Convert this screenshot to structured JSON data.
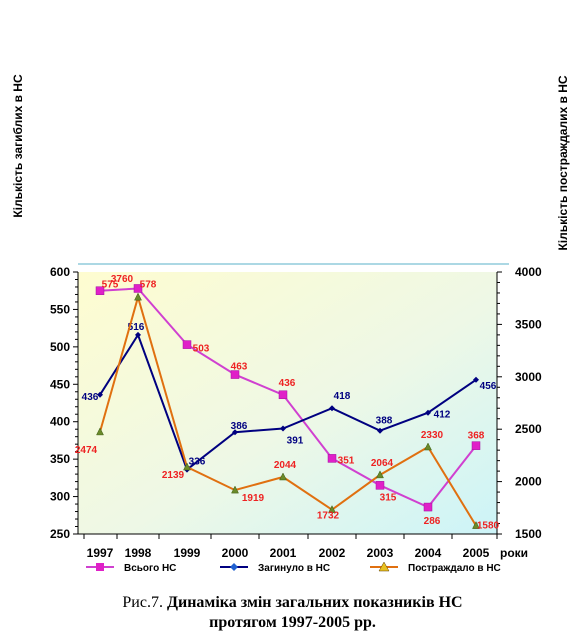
{
  "chart_data": {
    "type": "line",
    "left_axis_label": "Кількість загиблих в НС",
    "right_axis_label": "Кількість постраждалих в НС",
    "x_unit_label": "роки",
    "categories": [
      "1997",
      "1998",
      "1999",
      "2000",
      "2001",
      "2002",
      "2003",
      "2004",
      "2005"
    ],
    "left_ylim": [
      250,
      600
    ],
    "left_ticks": [
      250,
      300,
      350,
      400,
      450,
      500,
      550,
      600
    ],
    "right_ylim": [
      1500,
      4000
    ],
    "right_ticks": [
      1500,
      2000,
      2500,
      3000,
      3500,
      4000
    ],
    "grid": false,
    "legend_position": "bottom",
    "series": [
      {
        "name": "Всього НС",
        "axis": "left",
        "color": "#e020c8",
        "line_color": "#d040d0",
        "marker": "square",
        "values": [
          575,
          578,
          503,
          463,
          436,
          351,
          315,
          286,
          368
        ],
        "labels": [
          "575",
          "578",
          "503",
          "463",
          "436",
          "351",
          "315",
          "286",
          "368"
        ],
        "label_color": "#ee2222"
      },
      {
        "name": "Загинуло в НС",
        "axis": "left",
        "color": "#000080",
        "line_color": "#000080",
        "marker": "diamond",
        "values": [
          436,
          516,
          336,
          386,
          391,
          418,
          388,
          412,
          456
        ],
        "labels": [
          "436",
          "516",
          "336",
          "386",
          "391",
          "418",
          "388",
          "412",
          "456"
        ],
        "label_color": "#000080"
      },
      {
        "name": "Постраждало в НС",
        "axis": "right",
        "color": "#e08010",
        "line_color": "#e07010",
        "marker": "triangle",
        "values": [
          2474,
          3760,
          2139,
          1919,
          2044,
          1732,
          2064,
          2330,
          1580
        ],
        "labels": [
          "2474",
          "3760",
          "2139",
          "1919",
          "2044",
          "1732",
          "2064",
          "2330",
          "1580"
        ],
        "label_color": "#ee2222"
      }
    ]
  },
  "caption": {
    "prefix": "Рис.7.",
    "title_line1": "Динаміка змін загальних показників НС",
    "title_line2": "протягом 1997-2005 рр."
  }
}
